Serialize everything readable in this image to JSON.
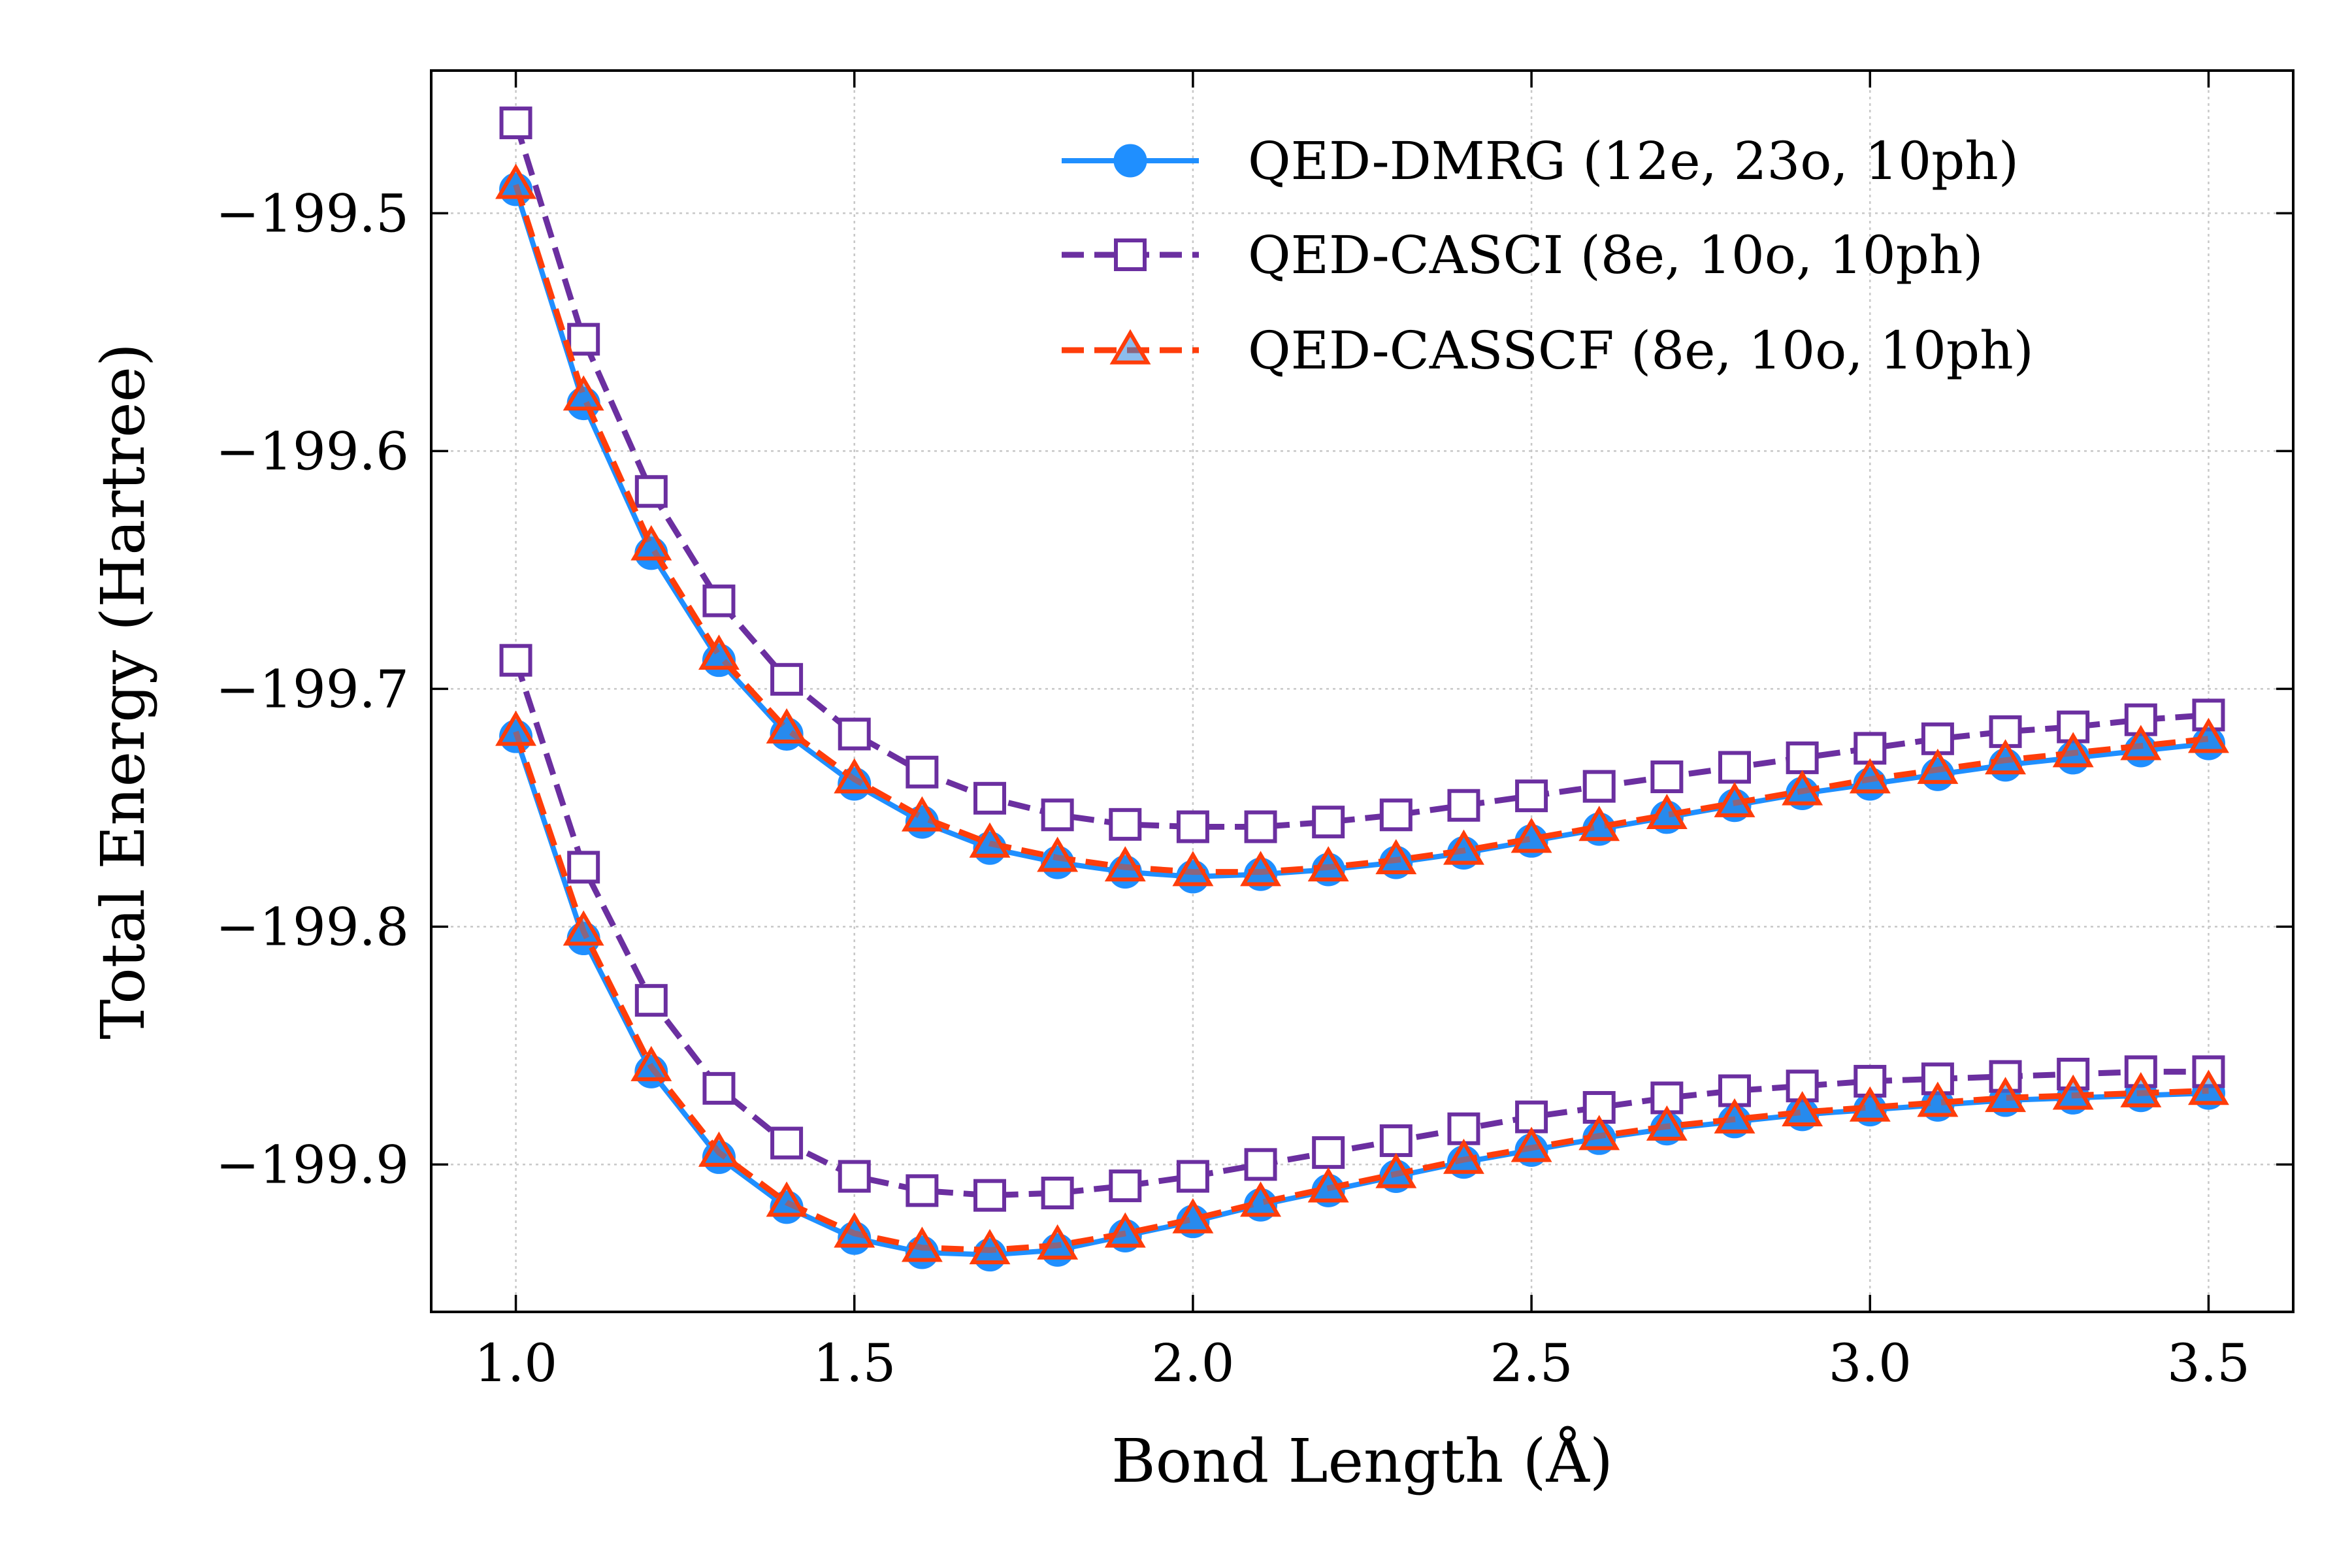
{
  "chart_data": {
    "type": "line",
    "xlabel": "Bond Length (Å)",
    "ylabel": "Total Energy (Hartree)",
    "xlim": [
      0.875,
      3.625
    ],
    "ylim": [
      -199.962,
      -199.44
    ],
    "x_ticks": [
      1.0,
      1.5,
      2.0,
      2.5,
      3.0,
      3.5
    ],
    "x_tick_labels": [
      "1.0",
      "1.5",
      "2.0",
      "2.5",
      "3.0",
      "3.5"
    ],
    "y_ticks": [
      -199.5,
      -199.6,
      -199.7,
      -199.8,
      -199.9
    ],
    "y_tick_labels": [
      "−199.5",
      "−199.6",
      "−199.7",
      "−199.8",
      "−199.9"
    ],
    "grid": true,
    "legend_position": "top-right",
    "x": [
      1.0,
      1.1,
      1.2,
      1.3,
      1.4,
      1.5,
      1.6,
      1.7,
      1.8,
      1.9,
      2.0,
      2.1,
      2.2,
      2.3,
      2.4,
      2.5,
      2.6,
      2.7,
      2.8,
      2.9,
      3.0,
      3.1,
      3.2,
      3.3,
      3.4,
      3.5
    ],
    "series": [
      {
        "name": "QED-DMRG (12e, 23o, 10ph)",
        "color": "#1f8fff",
        "line_style": "solid",
        "marker": "filled-circle",
        "curves": [
          [
            -199.49,
            -199.58,
            -199.643,
            -199.688,
            -199.719,
            -199.74,
            -199.756,
            -199.767,
            -199.773,
            -199.777,
            -199.779,
            -199.778,
            -199.776,
            -199.773,
            -199.769,
            -199.764,
            -199.759,
            -199.754,
            -199.749,
            -199.744,
            -199.74,
            -199.736,
            -199.732,
            -199.729,
            -199.726,
            -199.723
          ],
          [
            -199.72,
            -199.805,
            -199.861,
            -199.897,
            -199.918,
            -199.931,
            -199.937,
            -199.938,
            -199.936,
            -199.93,
            -199.924,
            -199.917,
            -199.911,
            -199.905,
            -199.899,
            -199.894,
            -199.889,
            -199.885,
            -199.882,
            -199.879,
            -199.877,
            -199.875,
            -199.873,
            -199.872,
            -199.871,
            -199.87
          ]
        ]
      },
      {
        "name": "QED-CASCI (8e, 10o, 10ph)",
        "color": "#6b2fa0",
        "line_style": "dashed",
        "marker": "open-square",
        "curves": [
          [
            -199.462,
            -199.553,
            -199.617,
            -199.663,
            -199.696,
            -199.719,
            -199.735,
            -199.746,
            -199.753,
            -199.757,
            -199.758,
            -199.758,
            -199.756,
            -199.753,
            -199.749,
            -199.745,
            -199.741,
            -199.737,
            -199.733,
            -199.729,
            -199.725,
            -199.721,
            -199.718,
            -199.716,
            -199.713,
            -199.711
          ],
          [
            -199.688,
            -199.775,
            -199.831,
            -199.868,
            -199.891,
            -199.905,
            -199.911,
            -199.913,
            -199.912,
            -199.909,
            -199.905,
            -199.9,
            -199.895,
            -199.89,
            -199.885,
            -199.88,
            -199.876,
            -199.872,
            -199.869,
            -199.867,
            -199.865,
            -199.864,
            -199.863,
            -199.862,
            -199.861,
            -199.861
          ]
        ]
      },
      {
        "name": "QED-CASSCF (8e, 10o, 10ph)",
        "color": "#ff3d0a",
        "line_style": "dashed",
        "marker": "open-triangle",
        "curves": [
          [
            -199.488,
            -199.577,
            -199.64,
            -199.686,
            -199.717,
            -199.738,
            -199.754,
            -199.765,
            -199.771,
            -199.775,
            -199.777,
            -199.777,
            -199.775,
            -199.772,
            -199.768,
            -199.763,
            -199.758,
            -199.753,
            -199.748,
            -199.743,
            -199.738,
            -199.734,
            -199.73,
            -199.727,
            -199.724,
            -199.721
          ],
          [
            -199.718,
            -199.802,
            -199.859,
            -199.895,
            -199.916,
            -199.929,
            -199.935,
            -199.936,
            -199.934,
            -199.929,
            -199.923,
            -199.916,
            -199.91,
            -199.904,
            -199.898,
            -199.893,
            -199.888,
            -199.884,
            -199.881,
            -199.878,
            -199.876,
            -199.874,
            -199.872,
            -199.871,
            -199.87,
            -199.869
          ]
        ]
      }
    ]
  }
}
